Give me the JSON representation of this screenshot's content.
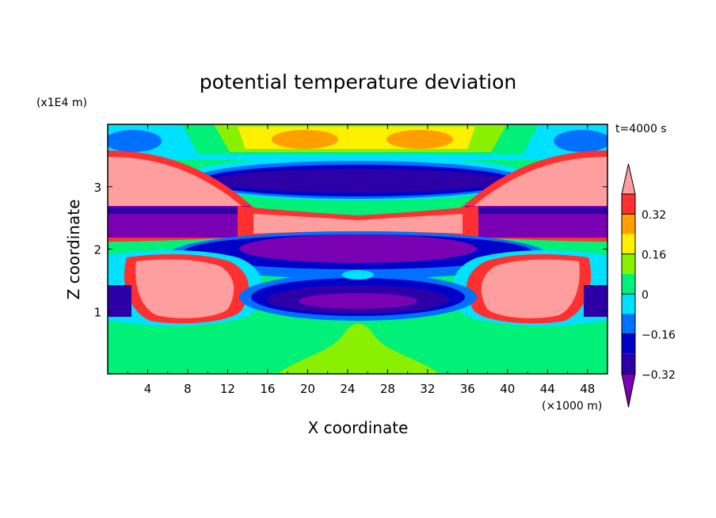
{
  "chart_data": {
    "type": "heatmap",
    "title": "potential temperature deviation",
    "xlabel": "X coordinate",
    "ylabel": "Z coordinate",
    "x_unit": "(×1000 m)",
    "y_unit": "(x1E4 m)",
    "time_label": "t=4000 s",
    "xlim": [
      0,
      50
    ],
    "ylim": [
      0,
      4
    ],
    "x_ticks": [
      4,
      8,
      12,
      16,
      20,
      24,
      28,
      32,
      36,
      40,
      44,
      48
    ],
    "y_ticks": [
      1,
      2,
      3
    ],
    "colorbar": {
      "labels": [
        "0.32",
        "0.16",
        "0",
        "−0.16",
        "−0.32"
      ],
      "levels": [
        -0.4,
        -0.32,
        -0.24,
        -0.16,
        -0.08,
        0,
        0.08,
        0.16,
        0.24,
        0.32,
        0.4
      ],
      "colors": [
        "#7a00b4",
        "#2c00a6",
        "#0000c8",
        "#0070ff",
        "#00e0ff",
        "#00f078",
        "#88f000",
        "#fff000",
        "#ffa000",
        "#ff3030",
        "#ff9e9e"
      ],
      "extend": "both"
    }
  }
}
